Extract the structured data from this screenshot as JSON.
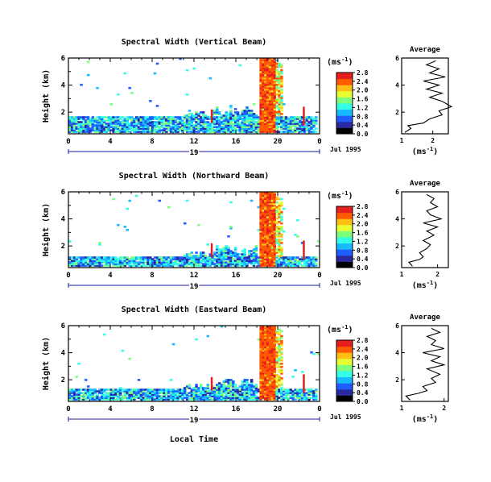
{
  "figure": {
    "x_axis_label": "Local Time",
    "date_label": "Jul 1995",
    "day_label": "19",
    "unit_label": "(ms",
    "unit_exp": "-1",
    "unit_close": ")",
    "average_title": "Average",
    "y_axis_label": "Height (km)"
  },
  "chart_data": [
    {
      "type": "heatmap",
      "title": "Spectral Width (Vertical Beam)",
      "ylabel": "Height (km)",
      "xlabel": "Local Time",
      "x_ticks": [
        "0",
        "4",
        "8",
        "12",
        "16",
        "20",
        "0"
      ],
      "xlim": [
        0,
        24
      ],
      "y_ticks": [
        "2",
        "4",
        "6"
      ],
      "ylim": [
        0.4,
        6
      ],
      "colorbar": {
        "label": "(ms-1)",
        "ticks": [
          "0.0",
          "0.4",
          "0.8",
          "1.2",
          "1.6",
          "2.0",
          "2.4",
          "2.8"
        ],
        "range": [
          0,
          2.8
        ],
        "colors": [
          "#000000",
          "#2a2aa0",
          "#1f5dff",
          "#17b9ff",
          "#33ffe6",
          "#7dff7d",
          "#e6ff33",
          "#ffbe14",
          "#ff5a00",
          "#e61e1e"
        ]
      },
      "features": [
        {
          "desc": "low-level echo band",
          "t_start": 0,
          "t_end": 23.6,
          "height_km": [
            0.5,
            1.7
          ]
        },
        {
          "desc": "wide-width column",
          "t_start": 18.2,
          "t_end": 19.6,
          "height_km": [
            0.5,
            6
          ],
          "value": 2.8
        }
      ],
      "average_profile": {
        "title": "Average",
        "xlabel": "(ms-1)",
        "x_ticks": [
          "1",
          "2"
        ],
        "xlim": [
          1,
          2.5
        ],
        "ylim": [
          0.4,
          6
        ],
        "y_ticks": [
          "2",
          "4",
          "6"
        ],
        "height_km": [
          0.5,
          0.8,
          1.0,
          1.2,
          1.5,
          1.8,
          2.1,
          2.4,
          2.8,
          3.1,
          3.4,
          3.7,
          4.0,
          4.3,
          4.6,
          4.9,
          5.2,
          5.5,
          5.8
        ],
        "width_ms": [
          1.1,
          1.3,
          1.2,
          1.7,
          1.9,
          2.3,
          2.2,
          2.6,
          2.3,
          1.9,
          2.3,
          1.8,
          2.2,
          1.7,
          2.4,
          1.9,
          2.2,
          1.8,
          2.1
        ]
      }
    },
    {
      "type": "heatmap",
      "title": "Spectral Width (Northward Beam)",
      "ylabel": "Height (km)",
      "xlabel": "Local Time",
      "x_ticks": [
        "0",
        "4",
        "8",
        "12",
        "16",
        "20",
        "0"
      ],
      "xlim": [
        0,
        24
      ],
      "y_ticks": [
        "2",
        "4",
        "6"
      ],
      "ylim": [
        0.4,
        6
      ],
      "colorbar": {
        "label": "(ms-1)",
        "ticks": [
          "0.0",
          "0.4",
          "0.8",
          "1.2",
          "1.6",
          "2.0",
          "2.4",
          "2.8"
        ],
        "range": [
          0,
          2.8
        ],
        "colors": [
          "#000000",
          "#2a2aa0",
          "#1f5dff",
          "#17b9ff",
          "#33ffe6",
          "#7dff7d",
          "#e6ff33",
          "#ffbe14",
          "#ff5a00",
          "#e61e1e"
        ]
      },
      "features": [
        {
          "desc": "low-level echo band",
          "t_start": 0,
          "t_end": 23.6,
          "height_km": [
            0.5,
            1.2
          ]
        },
        {
          "desc": "wide-width column",
          "t_start": 18.2,
          "t_end": 19.6,
          "height_km": [
            0.5,
            6
          ],
          "value": 2.8
        }
      ],
      "average_profile": {
        "title": "Average",
        "xlabel": "(ms-1)",
        "x_ticks": [
          "1",
          "2"
        ],
        "xlim": [
          1,
          2.3
        ],
        "ylim": [
          0.4,
          6
        ],
        "y_ticks": [
          "2",
          "4",
          "6"
        ],
        "height_km": [
          0.5,
          0.8,
          1.0,
          1.2,
          1.5,
          1.8,
          2.1,
          2.4,
          2.8,
          3.1,
          3.4,
          3.7,
          4.0,
          4.3,
          4.6,
          4.9,
          5.2,
          5.5,
          5.8
        ],
        "width_ms": [
          1.3,
          1.2,
          1.5,
          1.6,
          1.5,
          1.7,
          1.8,
          1.6,
          1.9,
          1.7,
          2.0,
          1.6,
          2.1,
          1.8,
          1.7,
          2.0,
          1.8,
          1.9,
          1.7
        ]
      }
    },
    {
      "type": "heatmap",
      "title": "Spectral Width (Eastward Beam)",
      "ylabel": "Height (km)",
      "xlabel": "Local Time",
      "x_ticks": [
        "0",
        "4",
        "8",
        "12",
        "16",
        "20",
        "0"
      ],
      "xlim": [
        0,
        24
      ],
      "y_ticks": [
        "2",
        "4",
        "6"
      ],
      "ylim": [
        0.4,
        6
      ],
      "colorbar": {
        "label": "(ms-1)",
        "ticks": [
          "0.0",
          "0.4",
          "0.8",
          "1.2",
          "1.6",
          "2.0",
          "2.4",
          "2.8"
        ],
        "range": [
          0,
          2.8
        ],
        "colors": [
          "#000000",
          "#2a2aa0",
          "#1f5dff",
          "#17b9ff",
          "#33ffe6",
          "#7dff7d",
          "#e6ff33",
          "#ffbe14",
          "#ff5a00",
          "#e61e1e"
        ]
      },
      "features": [
        {
          "desc": "low-level echo band",
          "t_start": 0,
          "t_end": 23.6,
          "height_km": [
            0.5,
            1.3
          ]
        },
        {
          "desc": "wide-width column",
          "t_start": 18.2,
          "t_end": 19.6,
          "height_km": [
            0.5,
            6
          ],
          "value": 2.8
        }
      ],
      "average_profile": {
        "title": "Average",
        "xlabel": "(ms-1)",
        "x_ticks": [
          "1",
          "2"
        ],
        "xlim": [
          1,
          2.1
        ],
        "ylim": [
          0.4,
          6
        ],
        "y_ticks": [
          "2",
          "4",
          "6"
        ],
        "height_km": [
          0.5,
          0.8,
          1.0,
          1.2,
          1.5,
          1.8,
          2.1,
          2.4,
          2.8,
          3.1,
          3.4,
          3.7,
          4.0,
          4.3,
          4.6,
          4.9,
          5.2,
          5.5,
          5.8
        ],
        "width_ms": [
          1.2,
          1.1,
          1.4,
          1.6,
          1.5,
          1.8,
          1.7,
          1.9,
          1.6,
          2.0,
          1.7,
          1.9,
          1.5,
          2.0,
          1.7,
          1.8,
          1.6,
          1.9,
          1.7
        ]
      }
    }
  ]
}
